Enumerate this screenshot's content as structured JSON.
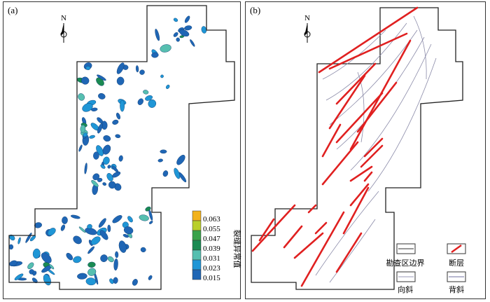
{
  "panel_a": {
    "label": "(a)",
    "north": "N",
    "colorbar": {
      "title": "裂缝异常值",
      "ticks": [
        "0.063",
        "0.055",
        "0.047",
        "0.039",
        "0.031",
        "0.023",
        "0.015"
      ],
      "colors": [
        "#f2b21b",
        "#b9cf2a",
        "#3aa24a",
        "#1a8a52",
        "#56bfb0",
        "#1f96d6",
        "#1f66b5"
      ]
    }
  },
  "panel_b": {
    "label": "(b)",
    "north": "N",
    "legend": {
      "boundary": "勘查区边界",
      "fault": "断层",
      "syncline": "向斜",
      "anticline": "背斜"
    },
    "colors": {
      "fault": "#e02020",
      "fold": "#8a8aa8",
      "boundary": "#333333"
    }
  }
}
